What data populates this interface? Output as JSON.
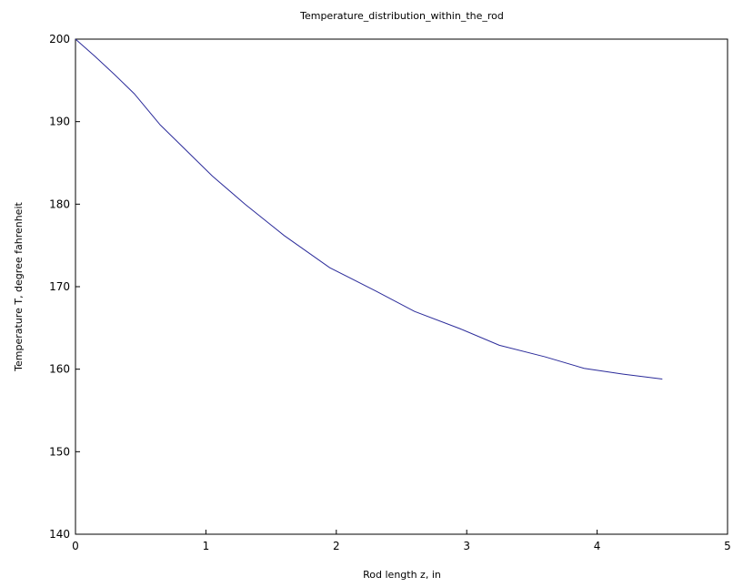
{
  "chart_data": {
    "type": "line",
    "title": "Temperature_distribution_within_the_rod",
    "xlabel": "Rod length z, in",
    "ylabel": "Temperature T, degree fahrenheit",
    "xlim": [
      0,
      5
    ],
    "ylim": [
      140,
      200
    ],
    "xticks": [
      0,
      1,
      2,
      3,
      4,
      5
    ],
    "yticks": [
      140,
      150,
      160,
      170,
      180,
      190,
      200
    ],
    "grid": false,
    "line_color": "#2b2b9a",
    "series": [
      {
        "x": [
          0,
          0.15,
          0.3,
          0.45,
          0.65,
          0.85,
          1.05,
          1.3,
          1.6,
          1.95,
          2.3,
          2.6,
          2.95,
          3.25,
          3.6,
          3.9,
          4.2,
          4.5
        ],
        "y": [
          200,
          197.9,
          195.7,
          193.4,
          189.6,
          186.5,
          183.4,
          180.0,
          176.2,
          172.3,
          169.5,
          167.0,
          164.9,
          162.9,
          161.5,
          160.1,
          159.4,
          158.8
        ]
      }
    ]
  }
}
